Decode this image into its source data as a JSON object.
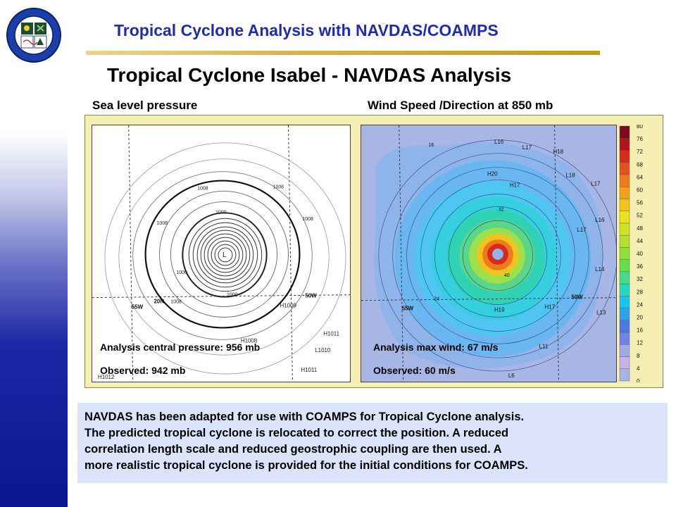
{
  "header": {
    "title": "Tropical Cyclone Analysis with NAVDAS/COAMPS",
    "logo_icon": "naval-research-laboratory-seal"
  },
  "page_title": "Tropical Cyclone Isabel - NAVDAS Analysis",
  "panels": {
    "left_label": "Sea level pressure",
    "right_label": "Wind Speed /Direction at 850 mb"
  },
  "pressure_map": {
    "contour_labels": [
      "1008",
      "1008",
      "1008",
      "1008",
      "1000",
      "1000",
      "1000",
      "1008",
      "L"
    ],
    "grid_labels": [
      "55W",
      "20N",
      "50W"
    ],
    "pressure_centers": [
      "H1008",
      "H1009",
      "H1011",
      "L1010",
      "H1012",
      "H1011"
    ]
  },
  "wind_map": {
    "grid_labels": [
      "55W",
      "50W"
    ],
    "pressure_centers": [
      "L16",
      "L17",
      "H18",
      "H20",
      "L18",
      "L17",
      "L16",
      "H17",
      "L17",
      "L14",
      "L13",
      "H19",
      "H17",
      "L11",
      "L6"
    ],
    "speed_labels": [
      "32",
      "40",
      "16",
      "24"
    ]
  },
  "colorbar": {
    "ticks": [
      "80",
      "76",
      "72",
      "68",
      "64",
      "60",
      "56",
      "52",
      "48",
      "44",
      "40",
      "36",
      "32",
      "28",
      "24",
      "20",
      "16",
      "12",
      "8",
      "4",
      "0"
    ],
    "colors": [
      "#a5b5e6",
      "#c9b3e4",
      "#9fa8e8",
      "#6d86e6",
      "#4c78e8",
      "#2ba4ef",
      "#18c6ee",
      "#26d8c4",
      "#44dc8e",
      "#66dd4c",
      "#8ee23a",
      "#b2e22c",
      "#d0e322",
      "#eae21c",
      "#f4c41c",
      "#f2a01c",
      "#ef7a1c",
      "#e6501c",
      "#d52a1e",
      "#b0121e",
      "#7a0a1e"
    ]
  },
  "annotations": {
    "analysis_pressure": "Analysis central pressure: 956 mb",
    "observed_pressure": "Observed: 942 mb",
    "analysis_wind": "Analysis max wind: 67 m/s",
    "observed_wind": "Observed: 60 m/s"
  },
  "description": {
    "line1": "NAVDAS has been adapted for use with COAMPS for Tropical Cyclone analysis.",
    "line2": "The predicted tropical cyclone is relocated to correct the position.  A reduced",
    "line3": "correlation length scale and reduced geostrophic coupling are then used.  A",
    "line4": "more realistic tropical cyclone is provided for the initial conditions for COAMPS."
  }
}
